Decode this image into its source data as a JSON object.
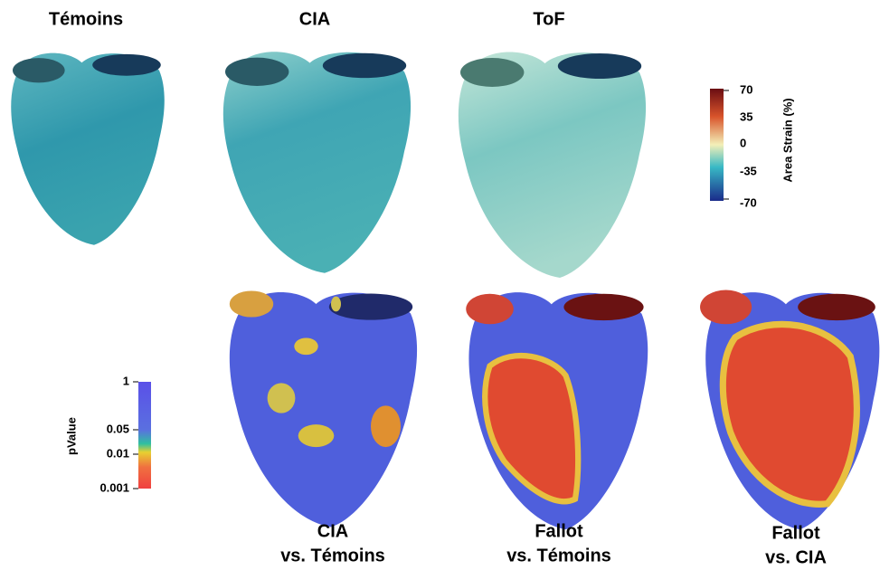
{
  "top_row": {
    "columns": [
      {
        "title": "Témoins"
      },
      {
        "title": "CIA"
      },
      {
        "title": "ToF"
      }
    ]
  },
  "strain_colorbar": {
    "label": "Area Strain (%)",
    "ticks": [
      "70",
      "35",
      "0",
      "-35",
      "-70"
    ]
  },
  "pvalue_colorbar": {
    "label": "pValue",
    "ticks": [
      "1",
      "0.05",
      "0.01",
      "0.001"
    ]
  },
  "bottom_row": {
    "comparisons": [
      {
        "line1": "CIA",
        "line2": "vs. Témoins"
      },
      {
        "line1": "Fallot",
        "line2": "vs. Témoins"
      },
      {
        "line1": "Fallot",
        "line2": "vs. CIA"
      }
    ]
  }
}
